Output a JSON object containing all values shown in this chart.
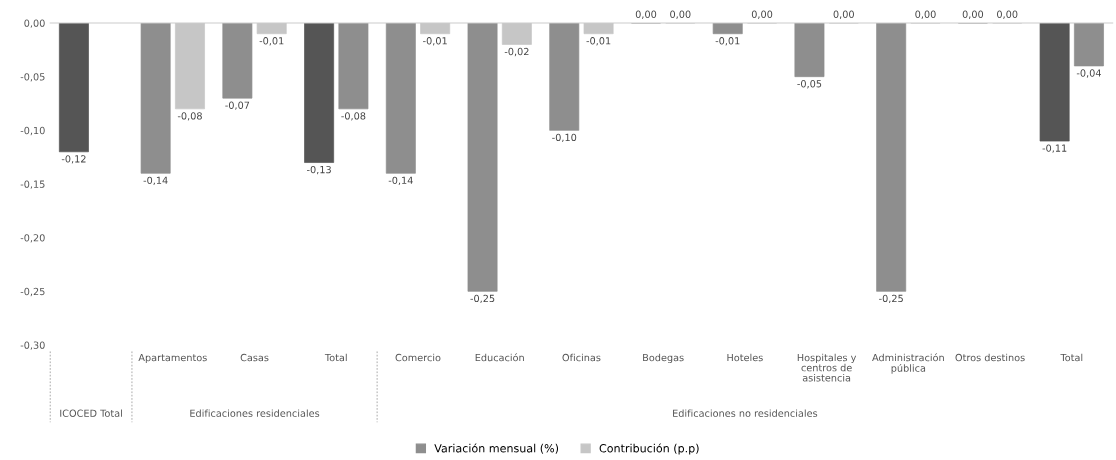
{
  "chart_data": {
    "type": "bar",
    "categories": [
      null,
      "Apartamentos",
      "Casas",
      "Total",
      "Comercio",
      "Educación",
      "Oficinas",
      "Bodegas",
      "Hoteles",
      "Hospitales y\ncentros de\nasistencia",
      "Administración\npública",
      "Otros destinos",
      "Total"
    ],
    "series": [
      {
        "name": "Variación mensual (%)",
        "color": "#8e8e8e",
        "colors": [
          "#555555",
          "#8e8e8e",
          "#8e8e8e",
          "#555555",
          "#8e8e8e",
          "#8e8e8e",
          "#8e8e8e",
          "#8e8e8e",
          "#8e8e8e",
          "#8e8e8e",
          "#8e8e8e",
          "#8e8e8e",
          "#555555"
        ],
        "values": [
          -0.12,
          -0.14,
          -0.07,
          -0.13,
          -0.14,
          -0.25,
          -0.1,
          0.0,
          -0.01,
          -0.05,
          -0.25,
          0.0,
          -0.11
        ],
        "value_labels": [
          "-0,12",
          "-0,14",
          "-0,07",
          "-0,13",
          "-0,14",
          "-0,25",
          "-0,10",
          "0,00",
          "-0,01",
          "-0,05",
          "-0,25",
          "0,00",
          "-0,11"
        ]
      },
      {
        "name": "Contribución (p.p)",
        "color": "#c6c6c6",
        "colors": [
          "#c6c6c6",
          "#c6c6c6",
          "#c6c6c6",
          "#8e8e8e",
          "#c6c6c6",
          "#c6c6c6",
          "#c6c6c6",
          "#c6c6c6",
          "#c6c6c6",
          "#c6c6c6",
          "#c6c6c6",
          "#c6c6c6",
          "#8e8e8e"
        ],
        "values": [
          null,
          -0.08,
          -0.01,
          -0.08,
          -0.01,
          -0.02,
          -0.01,
          0.0,
          0.0,
          0.0,
          0.0,
          0.0,
          -0.04
        ],
        "value_labels": [
          null,
          "-0,08",
          "-0,01",
          "-0,08",
          "-0,01",
          "-0,02",
          "-0,01",
          "0,00",
          "0,00",
          "0,00",
          "0,00",
          "0,00",
          "-0,04"
        ]
      }
    ],
    "ylim": [
      -0.3,
      0.0
    ],
    "yticks": [
      {
        "value": 0,
        "label": "0,00"
      },
      {
        "value": -0.05,
        "label": "-0,05"
      },
      {
        "value": -0.1,
        "label": "-0,10"
      },
      {
        "value": -0.15,
        "label": "-0,15"
      },
      {
        "value": -0.2,
        "label": "-0,20"
      },
      {
        "value": -0.25,
        "label": "-0,25"
      },
      {
        "value": -0.3,
        "label": "-0,30"
      }
    ],
    "annotations": [
      "ICOCED Total",
      "Edificaciones residenciales",
      "Edificaciones no residenciales"
    ],
    "grid": false,
    "legend": "bottom"
  }
}
